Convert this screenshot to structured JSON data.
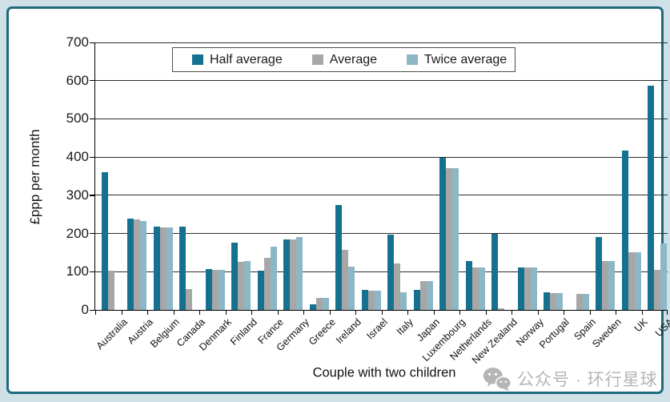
{
  "chart_data": {
    "type": "bar",
    "title": "",
    "x_axis_title": "Couple with two children",
    "y_axis_title": "£ppp per month",
    "ylim": [
      0,
      700
    ],
    "y_ticks": [
      700,
      600,
      500,
      400,
      300,
      200,
      100,
      0
    ],
    "grid": true,
    "legend_position": "top-center",
    "categories": [
      "Australia",
      "Austria",
      "Belgium",
      "Canada",
      "Denmark",
      "Finland",
      "France",
      "Germany",
      "Greece",
      "Ireland",
      "Israel",
      "Italy",
      "Japan",
      "Luxembourg",
      "Netherlands",
      "New Zealand",
      "Norway",
      "Portugal",
      "Spain",
      "Sweden",
      "UK",
      "USA"
    ],
    "series": [
      {
        "name": "Half average",
        "color": "#15718f",
        "values": [
          360,
          240,
          218,
          217,
          107,
          177,
          102,
          185,
          15,
          275,
          52,
          196,
          53,
          398,
          127,
          199,
          112,
          46,
          null,
          190,
          418,
          587
        ]
      },
      {
        "name": "Average",
        "color": "#a7a7a7",
        "values": [
          103,
          237,
          215,
          55,
          105,
          126,
          136,
          185,
          31,
          157,
          50,
          121,
          75,
          370,
          112,
          4,
          112,
          45,
          42,
          127,
          150,
          105
        ]
      },
      {
        "name": "Twice average",
        "color": "#8db7c7",
        "values": [
          null,
          233,
          215,
          null,
          105,
          128,
          165,
          190,
          31,
          113,
          50,
          46,
          75,
          370,
          112,
          null,
          112,
          45,
          42,
          127,
          150,
          175
        ]
      }
    ]
  },
  "watermark": {
    "text": "公众号 · 环行星球",
    "icon": "wechat-icon",
    "color": "#b5b5b5"
  },
  "frame": {
    "border_color": "#1e6b7d",
    "background_color": "#cfe0e6",
    "plot_background": "#ffffff"
  }
}
